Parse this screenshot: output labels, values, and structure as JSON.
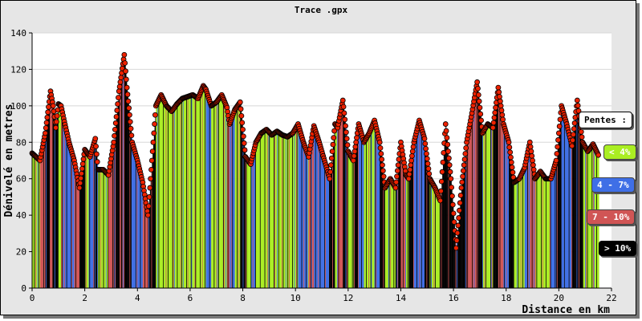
{
  "chart_data": {
    "type": "area",
    "title": "Trace .gpx",
    "xlabel": "Distance en km",
    "ylabel": "Dénivelé en metres",
    "xlim": [
      0,
      22
    ],
    "ylim": [
      0,
      140
    ],
    "x_ticks": [
      0,
      2,
      4,
      6,
      8,
      10,
      12,
      14,
      16,
      18,
      20,
      22
    ],
    "y_ticks": [
      0,
      20,
      40,
      60,
      80,
      100,
      120,
      140
    ],
    "grid": "horizontal",
    "legend_placement": "right",
    "legend_title": "Pentes :",
    "legend": [
      {
        "label": "< 4%",
        "color": "#aaee22"
      },
      {
        "label": "4 - 7%",
        "color": "#3f6fe6"
      },
      {
        "label": "7 - 10%",
        "color": "#d05555"
      },
      {
        "label": "> 10%",
        "color": "#000000"
      }
    ],
    "marker_color": "#ee2200",
    "x": [
      0,
      0.3,
      0.5,
      0.7,
      0.8,
      0.9,
      1.0,
      1.1,
      1.2,
      1.4,
      1.6,
      1.8,
      2.0,
      2.2,
      2.4,
      2.5,
      2.7,
      2.9,
      3.1,
      3.3,
      3.5,
      3.6,
      3.8,
      4.0,
      4.2,
      4.4,
      4.5,
      4.7,
      4.9,
      5.1,
      5.3,
      5.5,
      5.7,
      5.9,
      6.1,
      6.3,
      6.5,
      6.6,
      6.8,
      7.0,
      7.2,
      7.4,
      7.5,
      7.7,
      7.9,
      8.1,
      8.3,
      8.5,
      8.7,
      8.9,
      9.1,
      9.3,
      9.5,
      9.7,
      9.9,
      10.1,
      10.3,
      10.5,
      10.7,
      10.9,
      11.1,
      11.3,
      11.5,
      11.6,
      11.8,
      12.0,
      12.2,
      12.4,
      12.6,
      12.8,
      13.0,
      13.2,
      13.4,
      13.6,
      13.8,
      14.0,
      14.2,
      14.3,
      14.5,
      14.7,
      14.9,
      15.1,
      15.3,
      15.5,
      15.7,
      15.9,
      16.1,
      16.3,
      16.5,
      16.7,
      16.9,
      17.1,
      17.3,
      17.5,
      17.7,
      17.9,
      18.1,
      18.3,
      18.5,
      18.7,
      18.9,
      19.1,
      19.3,
      19.5,
      19.7,
      19.9,
      20.1,
      20.3,
      20.5,
      20.7,
      20.9,
      21.1,
      21.3,
      21.5
    ],
    "y": [
      74,
      70,
      85,
      108,
      100,
      88,
      101,
      100,
      93,
      80,
      70,
      55,
      76,
      72,
      82,
      65,
      65,
      62,
      80,
      108,
      128,
      110,
      80,
      70,
      58,
      40,
      60,
      100,
      106,
      100,
      97,
      101,
      104,
      105,
      106,
      104,
      111,
      109,
      100,
      102,
      106,
      99,
      90,
      98,
      102,
      72,
      68,
      80,
      85,
      87,
      84,
      86,
      84,
      83,
      85,
      90,
      80,
      72,
      89,
      80,
      70,
      60,
      90,
      88,
      103,
      75,
      70,
      90,
      80,
      85,
      92,
      80,
      55,
      60,
      55,
      80,
      62,
      60,
      80,
      92,
      82,
      60,
      55,
      48,
      90,
      60,
      22,
      55,
      80,
      96,
      113,
      85,
      90,
      88,
      110,
      90,
      80,
      58,
      60,
      66,
      80,
      60,
      64,
      60,
      60,
      70,
      100,
      90,
      78,
      103,
      80,
      75,
      79,
      73
    ]
  }
}
